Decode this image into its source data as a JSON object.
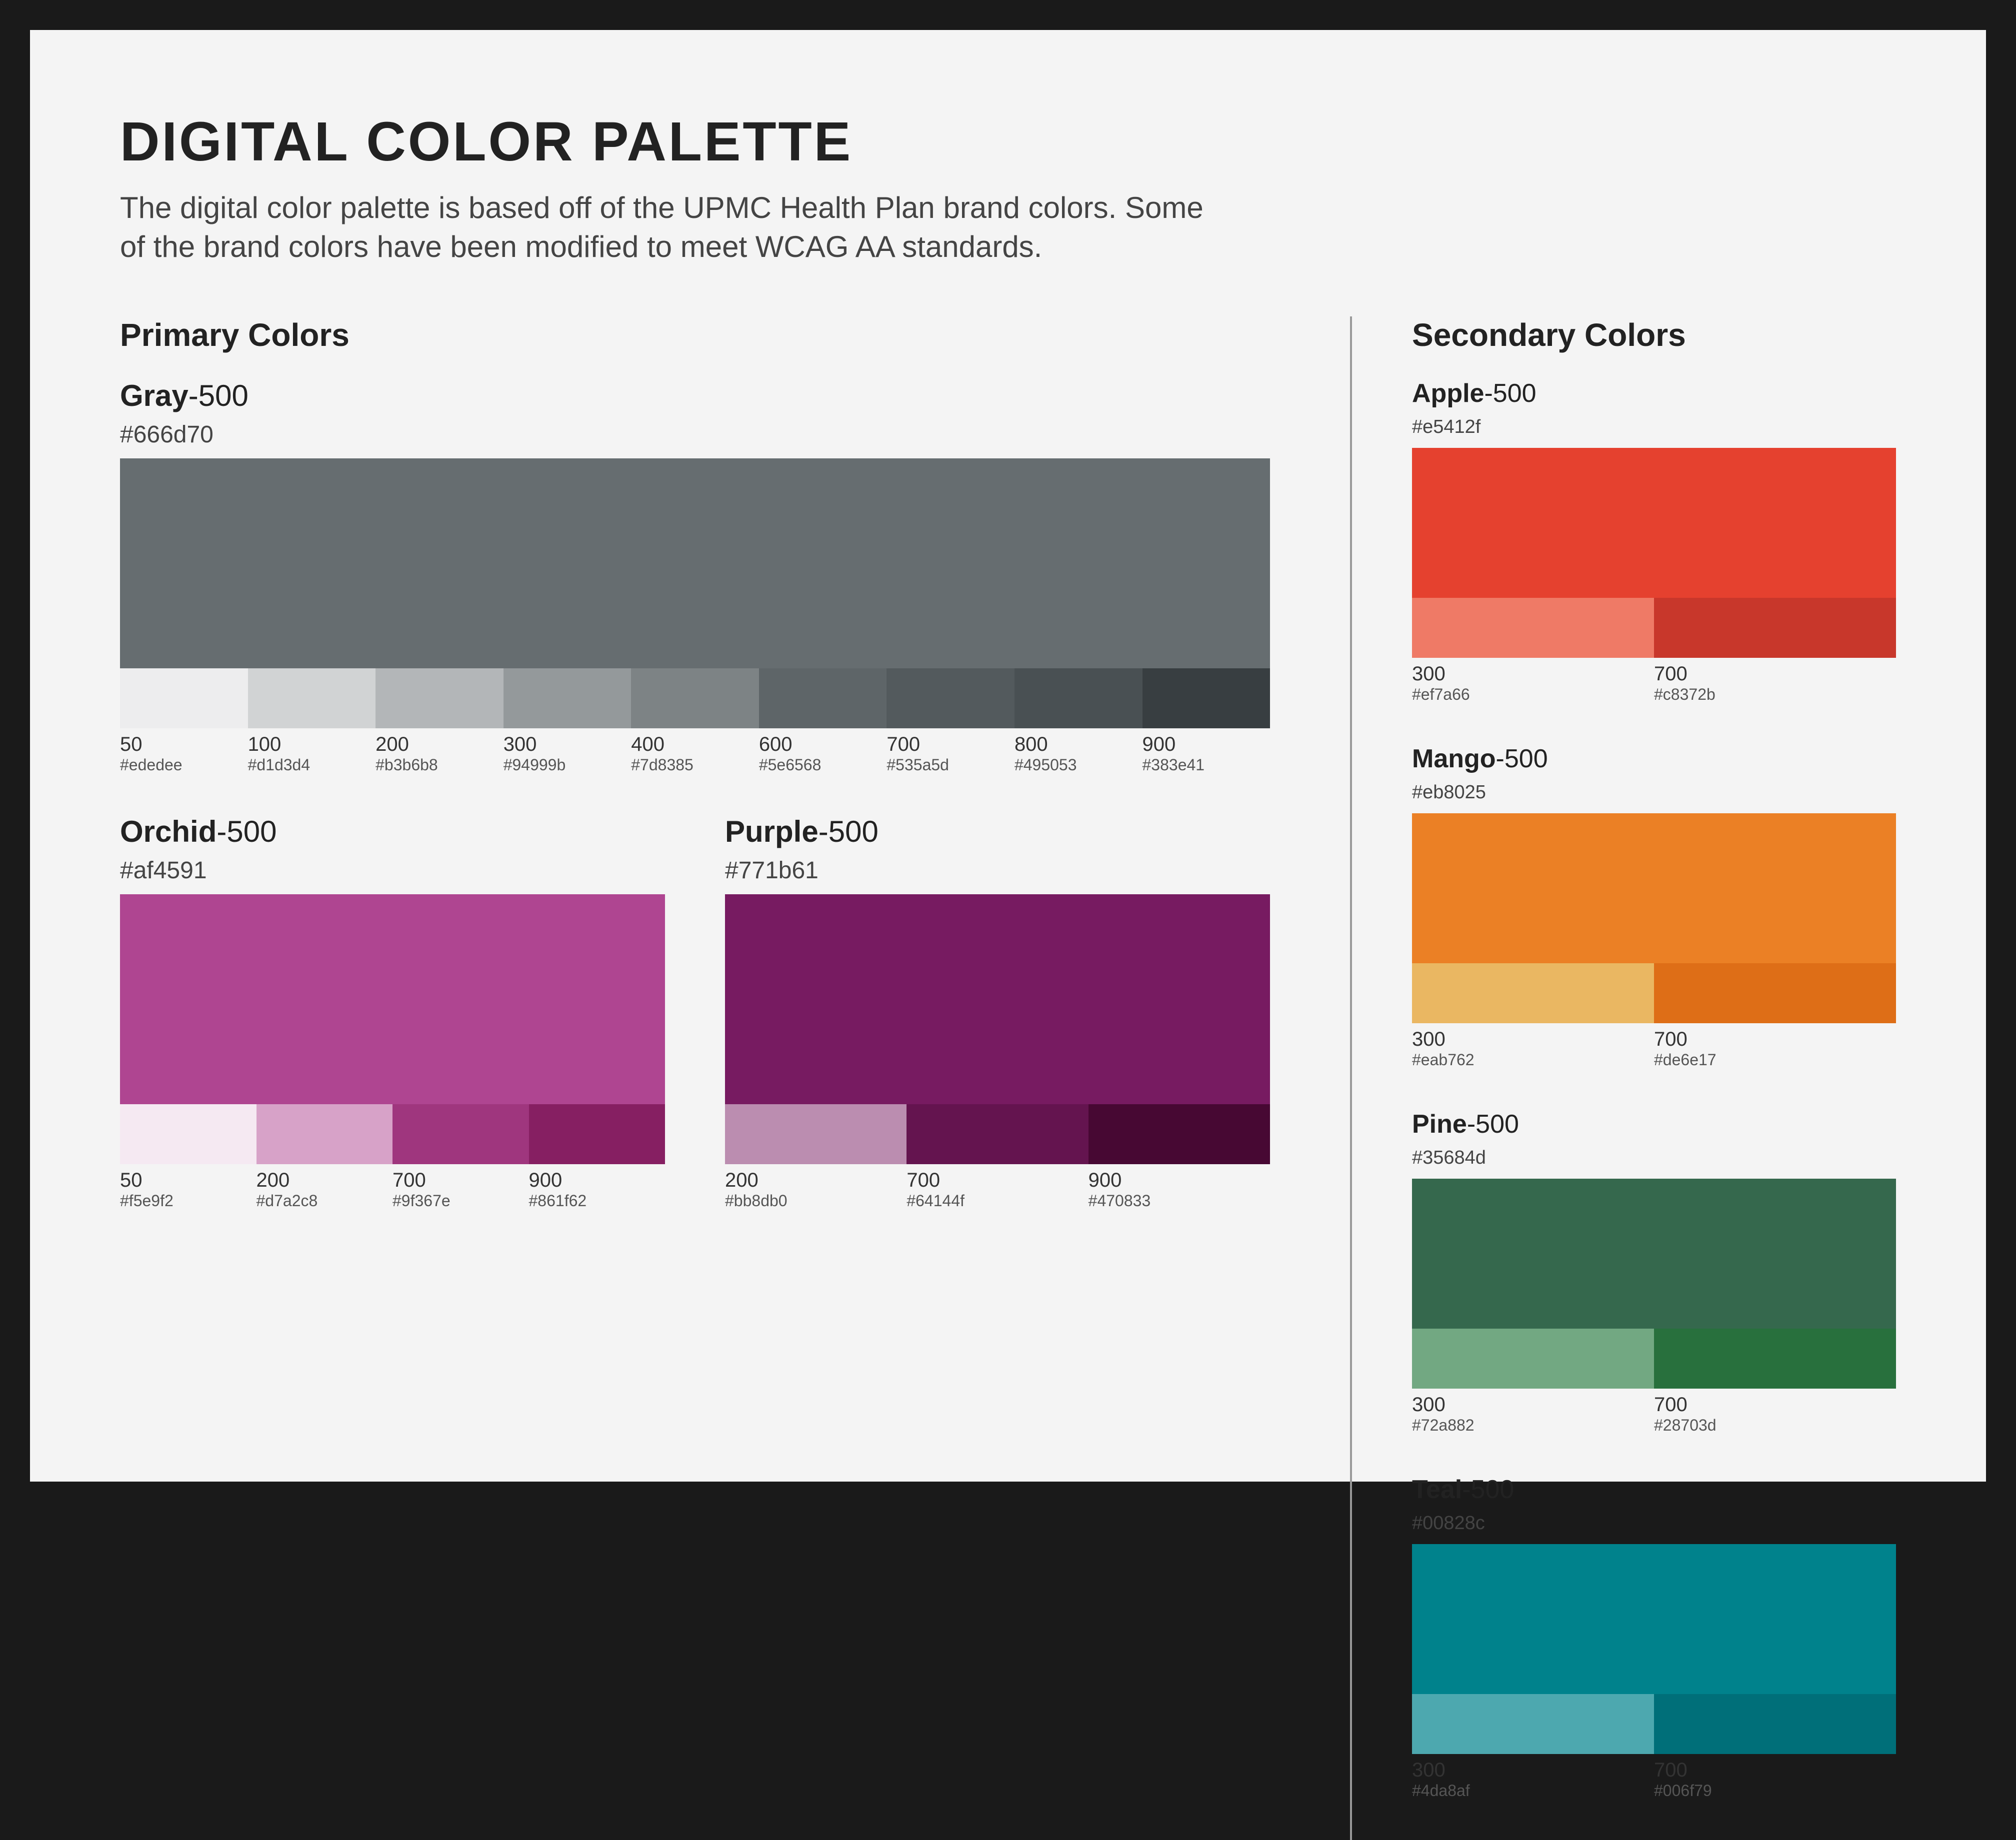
{
  "header": {
    "title": "DIGITAL COLOR PALETTE",
    "intro": "The digital color palette is based off of the UPMC Health Plan brand colors. Some of the brand colors have been modified to meet WCAG AA standards."
  },
  "primary": {
    "heading": "Primary Colors",
    "palettes": [
      {
        "name": "Gray",
        "suffix": "-500",
        "hex": "#666d70",
        "shades": [
          {
            "step": "50",
            "hex": "#ededee"
          },
          {
            "step": "100",
            "hex": "#d1d3d4"
          },
          {
            "step": "200",
            "hex": "#b3b6b8"
          },
          {
            "step": "300",
            "hex": "#94999b"
          },
          {
            "step": "400",
            "hex": "#7d8385"
          },
          {
            "step": "600",
            "hex": "#5e6568"
          },
          {
            "step": "700",
            "hex": "#535a5d"
          },
          {
            "step": "800",
            "hex": "#495053"
          },
          {
            "step": "900",
            "hex": "#383e41"
          }
        ]
      },
      {
        "name": "Orchid",
        "suffix": "-500",
        "hex": "#af4591",
        "shades": [
          {
            "step": "50",
            "hex": "#f5e9f2"
          },
          {
            "step": "200",
            "hex": "#d7a2c8"
          },
          {
            "step": "700",
            "hex": "#9f367e"
          },
          {
            "step": "900",
            "hex": "#861f62"
          }
        ]
      },
      {
        "name": "Purple",
        "suffix": "-500",
        "hex": "#771b61",
        "shades": [
          {
            "step": "200",
            "hex": "#bb8db0"
          },
          {
            "step": "700",
            "hex": "#64144f"
          },
          {
            "step": "900",
            "hex": "#470833"
          }
        ]
      }
    ]
  },
  "secondary": {
    "heading": "Secondary Colors",
    "palettes": [
      {
        "name": "Apple",
        "suffix": "-500",
        "hex": "#e5412f",
        "shades": [
          {
            "step": "300",
            "hex": "#ef7a66"
          },
          {
            "step": "700",
            "hex": "#c8372b"
          }
        ]
      },
      {
        "name": "Mango",
        "suffix": "-500",
        "hex": "#eb8025",
        "shades": [
          {
            "step": "300",
            "hex": "#eab762"
          },
          {
            "step": "700",
            "hex": "#de6e17"
          }
        ]
      },
      {
        "name": "Pine",
        "suffix": "-500",
        "hex": "#35684d",
        "shades": [
          {
            "step": "300",
            "hex": "#72a882"
          },
          {
            "step": "700",
            "hex": "#28703d"
          }
        ]
      },
      {
        "name": "Teal",
        "suffix": "-500",
        "hex": "#00828c",
        "shades": [
          {
            "step": "300",
            "hex": "#4da8af"
          },
          {
            "step": "700",
            "hex": "#006f79"
          }
        ]
      }
    ]
  }
}
